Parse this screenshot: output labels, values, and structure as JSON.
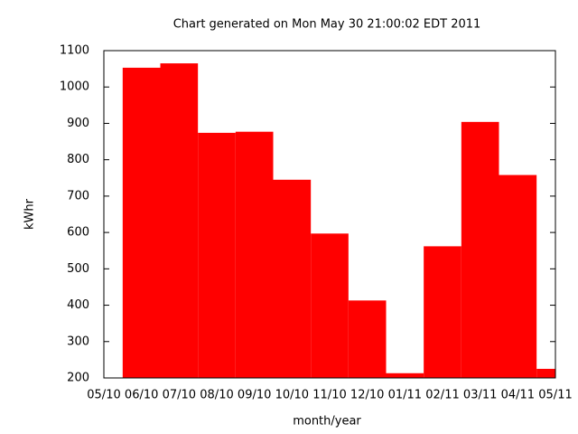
{
  "chart_data": {
    "type": "bar",
    "title": "Chart generated on Mon May 30 21:00:02 EDT 2011",
    "x_label": "month/year",
    "y_label": "kWhr",
    "categories": [
      "05/10",
      "06/10",
      "07/10",
      "08/10",
      "09/10",
      "10/10",
      "11/10",
      "12/10",
      "01/11",
      "02/11",
      "03/11",
      "04/11",
      "05/11"
    ],
    "values": [
      null,
      1053,
      1065,
      874,
      877,
      745,
      597,
      413,
      213,
      562,
      904,
      758,
      225
    ],
    "color": "#ff0000",
    "ylim": [
      200,
      1100
    ],
    "yticks": [
      200,
      300,
      400,
      500,
      600,
      700,
      800,
      900,
      1000,
      1100
    ]
  }
}
